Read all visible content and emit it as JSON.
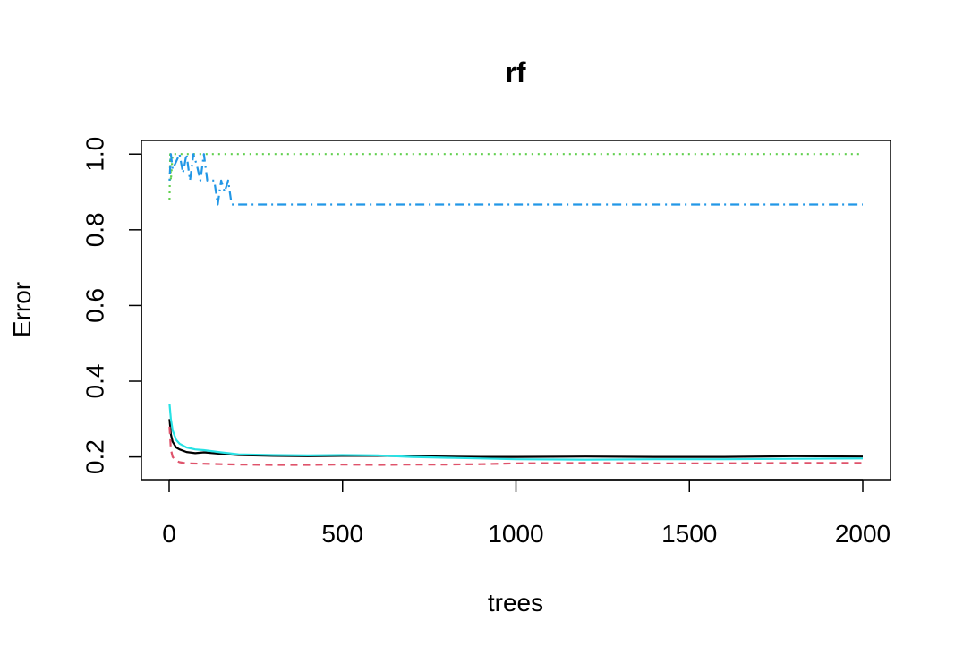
{
  "chart_data": {
    "type": "line",
    "title": "rf",
    "xlabel": "trees",
    "ylabel": "Error",
    "xlim": [
      -80,
      2080
    ],
    "ylim": [
      0.14,
      1.036
    ],
    "x_ticks": [
      "0",
      "500",
      "1000",
      "1500",
      "2000"
    ],
    "y_ticks": [
      "0.2",
      "0.4",
      "0.6",
      "0.8",
      "1.0"
    ],
    "grid": false,
    "legend": "none",
    "series": [
      {
        "color": "#000000",
        "dash": "solid",
        "x": [
          1,
          5,
          10,
          20,
          30,
          50,
          75,
          100,
          150,
          200,
          300,
          400,
          500,
          600,
          700,
          800,
          900,
          1000,
          1200,
          1400,
          1600,
          1800,
          2000
        ],
        "y": [
          0.3,
          0.26,
          0.24,
          0.225,
          0.22,
          0.213,
          0.21,
          0.212,
          0.208,
          0.205,
          0.203,
          0.202,
          0.203,
          0.203,
          0.202,
          0.201,
          0.2,
          0.2,
          0.201,
          0.2,
          0.2,
          0.202,
          0.201
        ]
      },
      {
        "color": "#DF536B",
        "dash": "dashed",
        "x": [
          1,
          5,
          10,
          20,
          30,
          50,
          100,
          150,
          200,
          300,
          400,
          500,
          600,
          700,
          800,
          900,
          1000,
          1200,
          1400,
          1600,
          1800,
          2000
        ],
        "y": [
          0.28,
          0.22,
          0.2,
          0.19,
          0.186,
          0.183,
          0.182,
          0.181,
          0.18,
          0.179,
          0.179,
          0.18,
          0.179,
          0.18,
          0.18,
          0.181,
          0.183,
          0.184,
          0.183,
          0.183,
          0.184,
          0.184
        ]
      },
      {
        "color": "#61D04F",
        "dash": "dotted",
        "x": [
          1,
          3,
          5,
          10,
          2000
        ],
        "y": [
          0.88,
          1.0,
          0.93,
          1.0,
          1.0
        ]
      },
      {
        "color": "#2297E6",
        "dash": "dashdot",
        "x": [
          1,
          5,
          10,
          20,
          30,
          40,
          50,
          60,
          70,
          80,
          90,
          100,
          110,
          130,
          140,
          150,
          160,
          170,
          180,
          2000
        ],
        "y": [
          0.93,
          1.0,
          0.96,
          0.98,
          1.0,
          0.95,
          1.0,
          0.93,
          1.0,
          0.97,
          0.93,
          1.0,
          0.93,
          0.93,
          0.867,
          0.93,
          0.9,
          0.93,
          0.867,
          0.867
        ]
      },
      {
        "color": "#28E2E5",
        "dash": "solid",
        "x": [
          1,
          5,
          10,
          20,
          30,
          50,
          75,
          100,
          150,
          200,
          300,
          400,
          500,
          600,
          700,
          800,
          900,
          1000,
          1200,
          1400,
          1600,
          1800,
          2000
        ],
        "y": [
          0.34,
          0.3,
          0.27,
          0.245,
          0.235,
          0.225,
          0.22,
          0.218,
          0.212,
          0.207,
          0.205,
          0.204,
          0.205,
          0.204,
          0.2,
          0.198,
          0.196,
          0.194,
          0.193,
          0.194,
          0.194,
          0.195,
          0.196
        ]
      }
    ]
  }
}
